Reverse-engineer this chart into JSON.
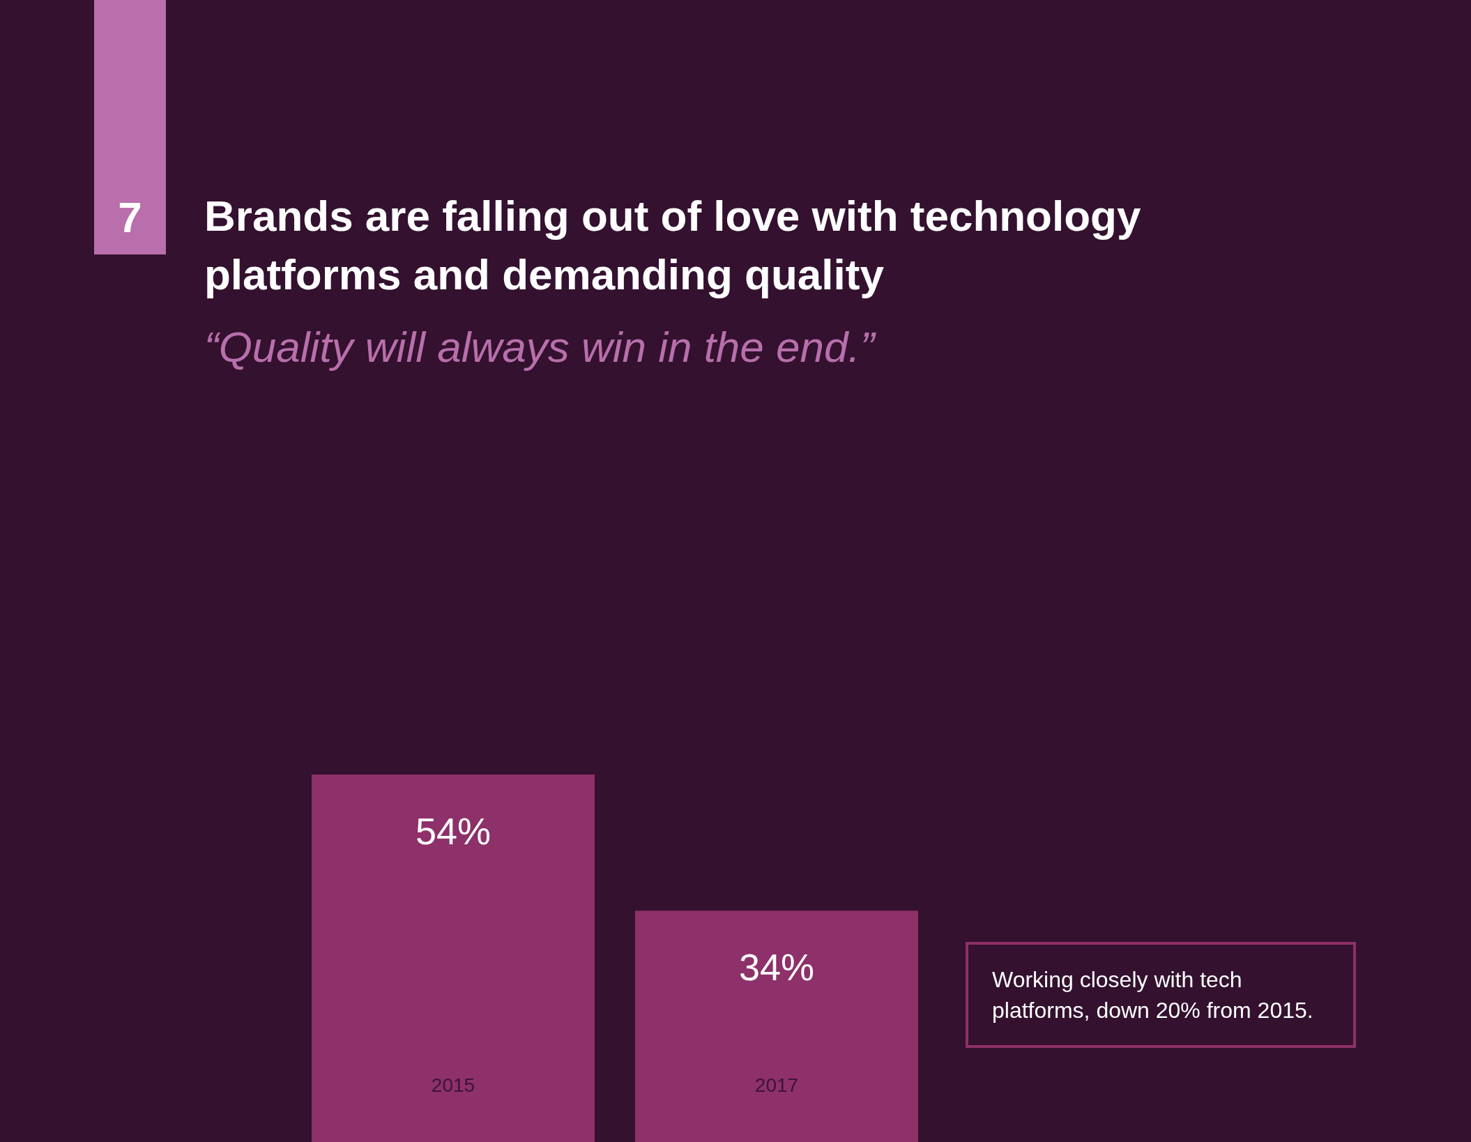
{
  "chart_data": {
    "type": "bar",
    "title": "Brands are falling out of love with technology platforms and demanding quality",
    "subtitle": "“Quality will always win in the end.”",
    "categories": [
      "2015",
      "2017"
    ],
    "values": [
      54,
      34
    ],
    "value_labels": [
      "54%",
      "34%"
    ],
    "color": "#8e3069",
    "annotations": [
      "7",
      "Working closely with tech platforms, down 20% from 2015."
    ],
    "grid": false,
    "legend": false
  }
}
